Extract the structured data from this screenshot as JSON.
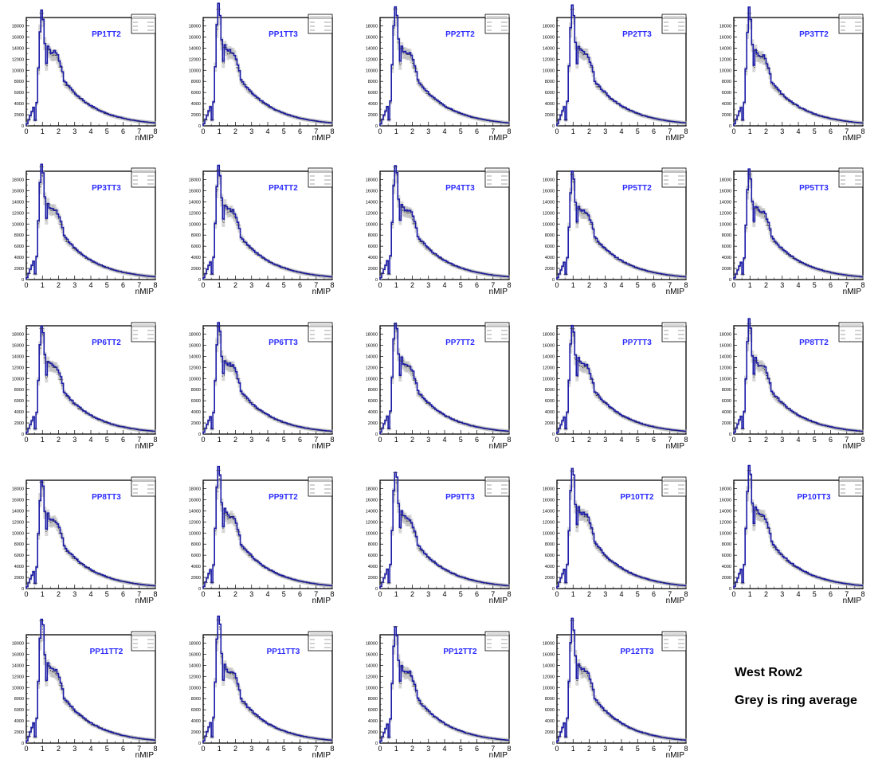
{
  "panel_common": {
    "y_ticks": [
      0,
      2000,
      4000,
      6000,
      8000,
      10000,
      12000,
      14000,
      16000,
      18000
    ],
    "x_ticks": [
      0,
      1,
      2,
      3,
      4,
      5,
      6,
      7,
      8
    ],
    "xlabel": "nMIP",
    "colors": {
      "histogram": "#1a1aa6",
      "ring_average": "#b4b4b4",
      "title": "#2b2bff",
      "errors": "#333333",
      "frame": "#000000"
    }
  },
  "notes": {
    "line1": "West Row2",
    "line2": "Grey is ring average"
  },
  "chart_data": [
    {
      "type": "line",
      "title": "PP1TT2",
      "xlabel": "nMIP",
      "xlim": [
        0,
        8
      ],
      "ylim": [
        0,
        19500
      ],
      "peak1": 16200,
      "peak2": 10700,
      "series": [
        {
          "color": "#1a1aa6"
        },
        {
          "color": "#b4b4b4"
        }
      ]
    },
    {
      "type": "line",
      "title": "PP1TT3",
      "xlabel": "nMIP",
      "xlim": [
        0,
        8
      ],
      "ylim": [
        0,
        19500
      ],
      "peak1": 16900,
      "peak2": 10900,
      "series": [
        {
          "color": "#1a1aa6"
        },
        {
          "color": "#b4b4b4"
        }
      ]
    },
    {
      "type": "line",
      "title": "PP2TT2",
      "xlabel": "nMIP",
      "xlim": [
        0,
        8
      ],
      "ylim": [
        0,
        19500
      ],
      "peak1": 17000,
      "peak2": 10700,
      "series": [
        {
          "color": "#1a1aa6"
        },
        {
          "color": "#b4b4b4"
        }
      ]
    },
    {
      "type": "line",
      "title": "PP2TT3",
      "xlabel": "nMIP",
      "xlim": [
        0,
        8
      ],
      "ylim": [
        0,
        19500
      ],
      "peak1": 16900,
      "peak2": 10700,
      "series": [
        {
          "color": "#1a1aa6"
        },
        {
          "color": "#b4b4b4"
        }
      ]
    },
    {
      "type": "line",
      "title": "PP3TT2",
      "xlabel": "nMIP",
      "xlim": [
        0,
        8
      ],
      "ylim": [
        0,
        19500
      ],
      "peak1": 16300,
      "peak2": 10300,
      "series": [
        {
          "color": "#1a1aa6"
        },
        {
          "color": "#b4b4b4"
        }
      ]
    },
    {
      "type": "line",
      "title": "PP3TT3",
      "xlabel": "nMIP",
      "xlim": [
        0,
        8
      ],
      "ylim": [
        0,
        19500
      ],
      "peak1": 16300,
      "peak2": 10300,
      "series": [
        {
          "color": "#1a1aa6"
        },
        {
          "color": "#b4b4b4"
        }
      ]
    },
    {
      "type": "line",
      "title": "PP4TT2",
      "xlabel": "nMIP",
      "xlim": [
        0,
        8
      ],
      "ylim": [
        0,
        19500
      ],
      "peak1": 15800,
      "peak2": 10100,
      "series": [
        {
          "color": "#1a1aa6"
        },
        {
          "color": "#b4b4b4"
        }
      ]
    },
    {
      "type": "line",
      "title": "PP4TT3",
      "xlabel": "nMIP",
      "xlim": [
        0,
        8
      ],
      "ylim": [
        0,
        19500
      ],
      "peak1": 16300,
      "peak2": 10200,
      "series": [
        {
          "color": "#1a1aa6"
        },
        {
          "color": "#b4b4b4"
        }
      ]
    },
    {
      "type": "line",
      "title": "PP5TT2",
      "xlabel": "nMIP",
      "xlim": [
        0,
        8
      ],
      "ylim": [
        0,
        19500
      ],
      "peak1": 15000,
      "peak2": 10000,
      "series": [
        {
          "color": "#1a1aa6"
        },
        {
          "color": "#b4b4b4"
        }
      ]
    },
    {
      "type": "line",
      "title": "PP5TT3",
      "xlabel": "nMIP",
      "xlim": [
        0,
        8
      ],
      "ylim": [
        0,
        19500
      ],
      "peak1": 15000,
      "peak2": 10000,
      "series": [
        {
          "color": "#1a1aa6"
        },
        {
          "color": "#b4b4b4"
        }
      ]
    },
    {
      "type": "line",
      "title": "PP6TT2",
      "xlabel": "nMIP",
      "xlim": [
        0,
        8
      ],
      "ylim": [
        0,
        19500
      ],
      "peak1": 15100,
      "peak2": 10000,
      "series": [
        {
          "color": "#1a1aa6"
        },
        {
          "color": "#b4b4b4"
        }
      ]
    },
    {
      "type": "line",
      "title": "PP6TT3",
      "xlabel": "nMIP",
      "xlim": [
        0,
        8
      ],
      "ylim": [
        0,
        19500
      ],
      "peak1": 15300,
      "peak2": 10100,
      "series": [
        {
          "color": "#1a1aa6"
        },
        {
          "color": "#b4b4b4"
        }
      ]
    },
    {
      "type": "line",
      "title": "PP7TT2",
      "xlabel": "nMIP",
      "xlim": [
        0,
        8
      ],
      "ylim": [
        0,
        19500
      ],
      "peak1": 15800,
      "peak2": 10100,
      "series": [
        {
          "color": "#1a1aa6"
        },
        {
          "color": "#b4b4b4"
        }
      ]
    },
    {
      "type": "line",
      "title": "PP7TT3",
      "xlabel": "nMIP",
      "xlim": [
        0,
        8
      ],
      "ylim": [
        0,
        19500
      ],
      "peak1": 15000,
      "peak2": 10100,
      "series": [
        {
          "color": "#1a1aa6"
        },
        {
          "color": "#b4b4b4"
        }
      ]
    },
    {
      "type": "line",
      "title": "PP8TT2",
      "xlabel": "nMIP",
      "xlim": [
        0,
        8
      ],
      "ylim": [
        0,
        19500
      ],
      "peak1": 15800,
      "peak2": 10100,
      "series": [
        {
          "color": "#1a1aa6"
        },
        {
          "color": "#b4b4b4"
        }
      ]
    },
    {
      "type": "line",
      "title": "PP8TT3",
      "xlabel": "nMIP",
      "xlim": [
        0,
        8
      ],
      "ylim": [
        0,
        19500
      ],
      "peak1": 15100,
      "peak2": 10000,
      "series": [
        {
          "color": "#1a1aa6"
        },
        {
          "color": "#b4b4b4"
        }
      ]
    },
    {
      "type": "line",
      "title": "PP9TT2",
      "xlabel": "nMIP",
      "xlim": [
        0,
        8
      ],
      "ylim": [
        0,
        19500
      ],
      "peak1": 17000,
      "peak2": 10600,
      "series": [
        {
          "color": "#1a1aa6"
        },
        {
          "color": "#b4b4b4"
        }
      ]
    },
    {
      "type": "line",
      "title": "PP9TT3",
      "xlabel": "nMIP",
      "xlim": [
        0,
        8
      ],
      "ylim": [
        0,
        19500
      ],
      "peak1": 16700,
      "peak2": 10300,
      "series": [
        {
          "color": "#1a1aa6"
        },
        {
          "color": "#b4b4b4"
        }
      ]
    },
    {
      "type": "line",
      "title": "PP10TT2",
      "xlabel": "nMIP",
      "xlim": [
        0,
        8
      ],
      "ylim": [
        0,
        19500
      ],
      "peak1": 16700,
      "peak2": 10900,
      "series": [
        {
          "color": "#1a1aa6"
        },
        {
          "color": "#b4b4b4"
        }
      ]
    },
    {
      "type": "line",
      "title": "PP10TT3",
      "xlabel": "nMIP",
      "xlim": [
        0,
        8
      ],
      "ylim": [
        0,
        19500
      ],
      "peak1": 16800,
      "peak2": 10900,
      "series": [
        {
          "color": "#1a1aa6"
        },
        {
          "color": "#b4b4b4"
        }
      ]
    },
    {
      "type": "line",
      "title": "PP11TT2",
      "xlabel": "nMIP",
      "xlim": [
        0,
        8
      ],
      "ylim": [
        0,
        19500
      ],
      "peak1": 17700,
      "peak2": 10700,
      "series": [
        {
          "color": "#1a1aa6"
        },
        {
          "color": "#b4b4b4"
        }
      ]
    },
    {
      "type": "line",
      "title": "PP11TT3",
      "xlabel": "nMIP",
      "xlim": [
        0,
        8
      ],
      "ylim": [
        0,
        19500
      ],
      "peak1": 17900,
      "peak2": 10500,
      "series": [
        {
          "color": "#1a1aa6"
        },
        {
          "color": "#b4b4b4"
        }
      ]
    },
    {
      "type": "line",
      "title": "PP12TT2",
      "xlabel": "nMIP",
      "xlim": [
        0,
        8
      ],
      "ylim": [
        0,
        19500
      ],
      "peak1": 16700,
      "peak2": 10400,
      "series": [
        {
          "color": "#1a1aa6"
        },
        {
          "color": "#b4b4b4"
        }
      ]
    },
    {
      "type": "line",
      "title": "PP12TT3",
      "xlabel": "nMIP",
      "xlim": [
        0,
        8
      ],
      "ylim": [
        0,
        19500
      ],
      "peak1": 17700,
      "peak2": 10600,
      "series": [
        {
          "color": "#1a1aa6"
        },
        {
          "color": "#b4b4b4"
        }
      ]
    }
  ]
}
